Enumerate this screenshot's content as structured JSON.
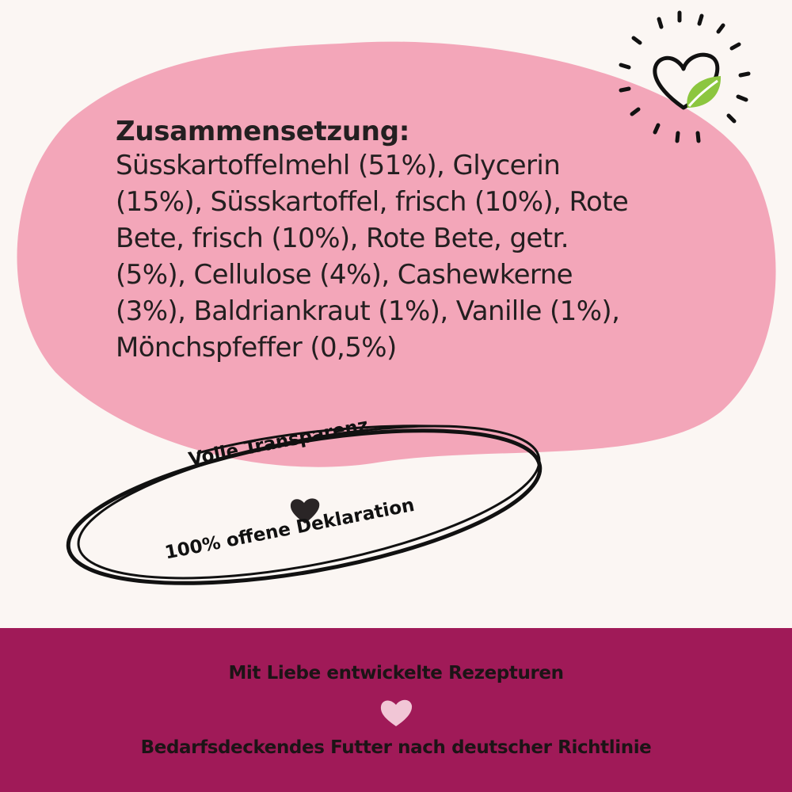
{
  "colors": {
    "background": "#fbf6f3",
    "blob": "#f3a6b9",
    "footer": "#a01a58",
    "text": "#231f20",
    "leaf": "#8cc63f"
  },
  "ingredients": {
    "heading": "Zusammensetzung:",
    "text": "Süsskartoffelmehl (51%), Glycerin\n(15%), Süsskartoffel, frisch (10%), Rote\nBete, frisch (10%), Rote Bete, getr.\n(5%), Cellulose (4%), Cashewkerne\n(3%), Baldriankraut (1%), Vanille (1%),\nMönchspfeffer (0,5%)"
  },
  "stamp": {
    "line1": "Volle Transparenz",
    "line2": "100% offene Deklaration",
    "icon": "heart-icon"
  },
  "logo": {
    "icon": "heart-with-leaf-icon"
  },
  "footer": {
    "line1": "Mit Liebe entwickelte Rezepturen",
    "line2": "Bedarfsdeckendes Futter nach deutscher Richtlinie",
    "icon": "heart-icon"
  }
}
